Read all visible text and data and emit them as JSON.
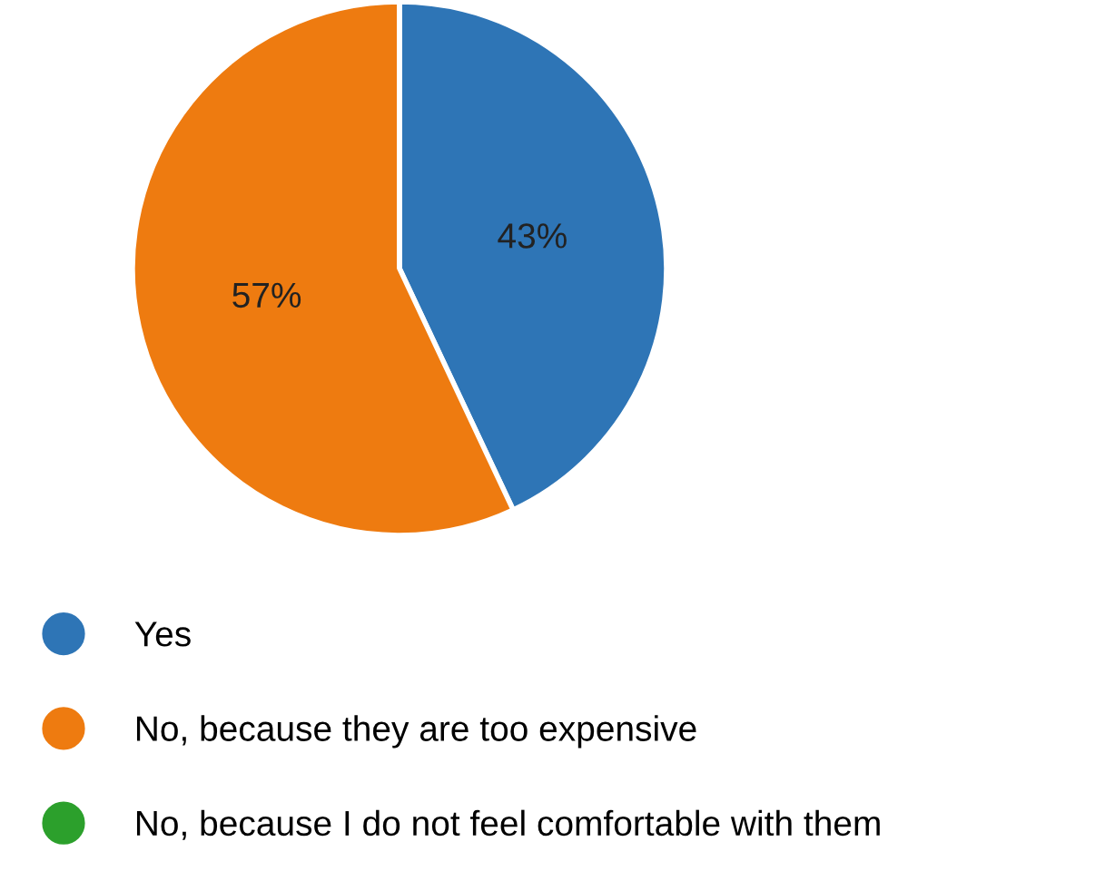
{
  "chart_data": {
    "type": "pie",
    "categories": [
      "Yes",
      "No, because they are too expensive",
      "No, because I do not feel comfortable with them"
    ],
    "values": [
      43,
      57,
      0
    ],
    "colors": [
      "#2e75b6",
      "#ee7b10",
      "#2ca02c"
    ],
    "value_labels": [
      "43%",
      "57%",
      null
    ],
    "legend": "bottom"
  }
}
